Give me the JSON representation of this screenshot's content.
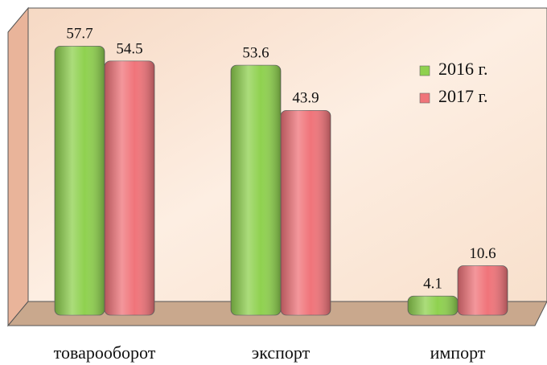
{
  "chart_data": {
    "type": "bar",
    "categories": [
      "товарооборот",
      "экспорт",
      "импорт"
    ],
    "series": [
      {
        "name": "2016 г.",
        "color": "#8fd14f",
        "values": [
          57.7,
          53.6,
          4.1
        ]
      },
      {
        "name": "2017 г.",
        "color": "#f0747a",
        "values": [
          54.5,
          43.9,
          10.6
        ]
      }
    ]
  }
}
